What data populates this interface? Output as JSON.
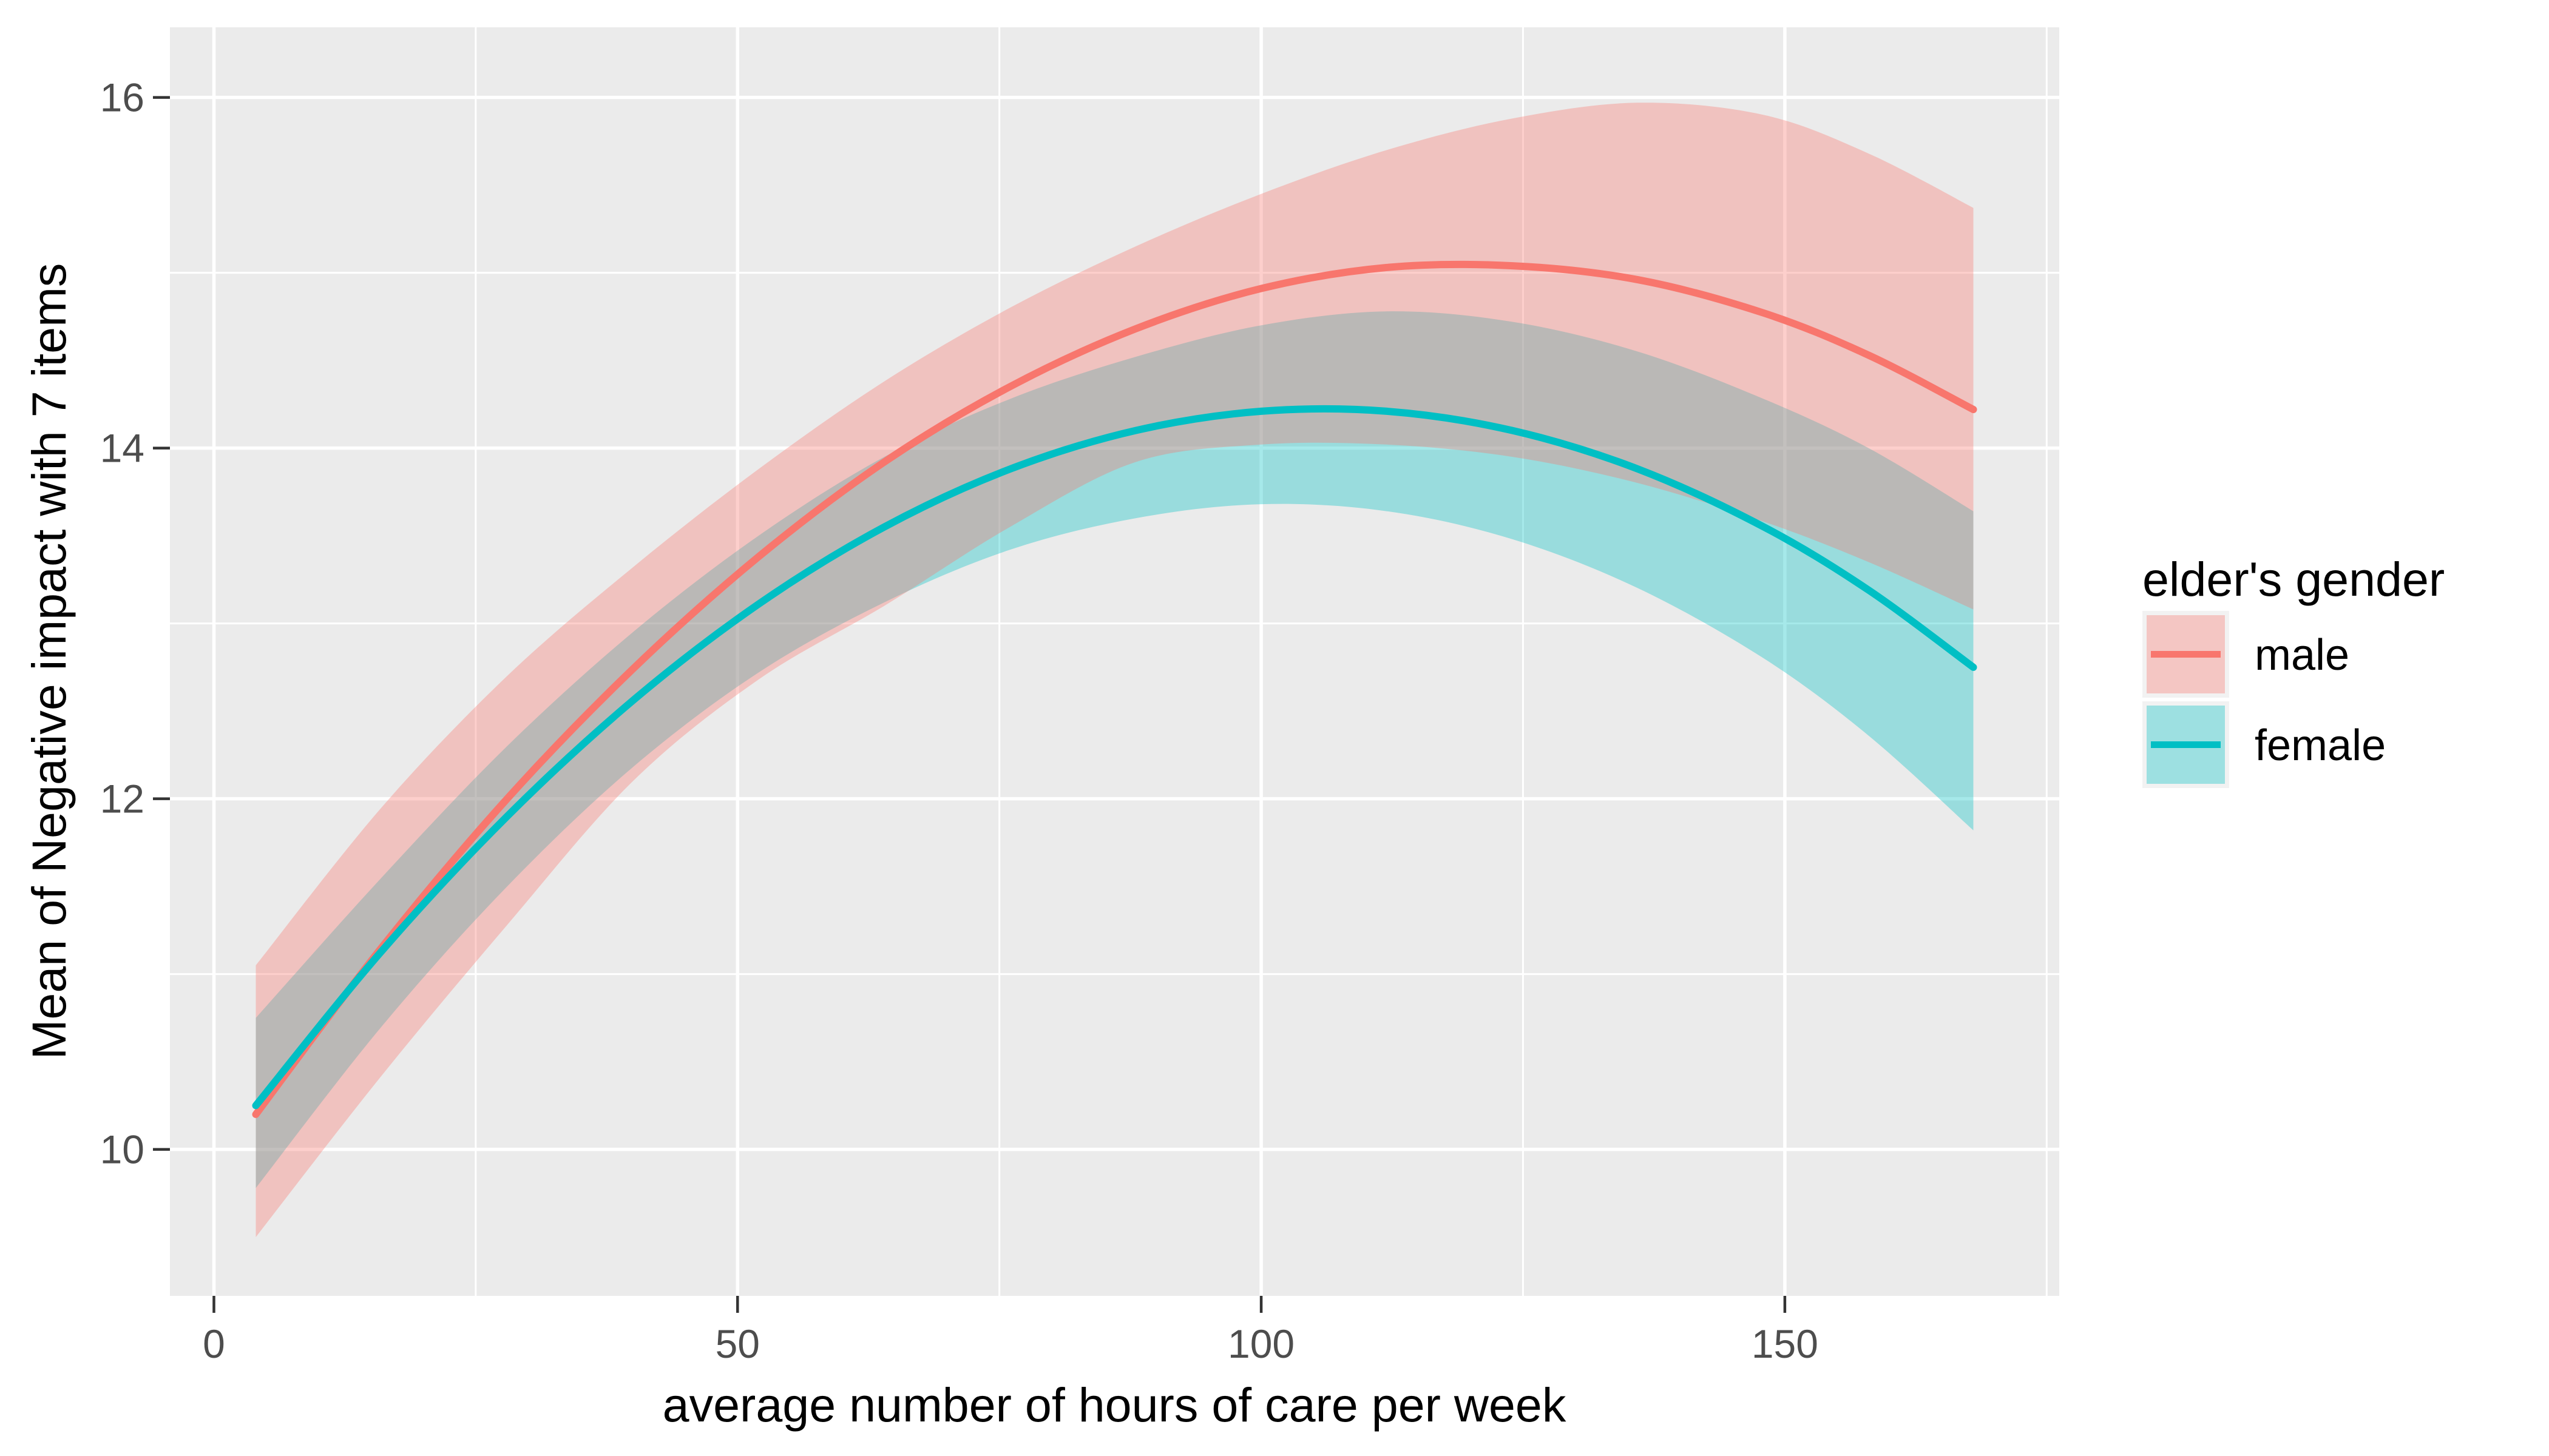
{
  "chart_data": {
    "type": "line",
    "title": "",
    "xlabel": "average number of hours of care per week",
    "ylabel": "Mean of Negative impact with 7 items",
    "xlim": [
      -4.2,
      176.2
    ],
    "ylim": [
      9.165,
      16.4
    ],
    "grid": true,
    "panel_bg": "#EBEBEB",
    "grid_color": "#FFFFFF",
    "tick_mark_color": "#333333",
    "tick_label_color": "#4D4D4D",
    "x_axis": {
      "major_ticks": [
        0,
        50,
        100,
        150
      ],
      "major_labels": [
        "0",
        "50",
        "100",
        "150"
      ],
      "minor_ticks": [
        25,
        75,
        125,
        175
      ]
    },
    "y_axis": {
      "major_ticks": [
        10,
        12,
        14,
        16
      ],
      "major_labels": [
        "10",
        "12",
        "14",
        "16"
      ],
      "minor_ticks": [
        11,
        13,
        15
      ]
    },
    "legend": {
      "title": "elder's gender",
      "position": "right",
      "key_bg": "#F2F2F2",
      "entries": [
        {
          "label": "male",
          "color": "#F8766D"
        },
        {
          "label": "female",
          "color": "#00BFC4"
        }
      ]
    },
    "ribbon_alpha": 0.35,
    "x": [
      4,
      16,
      28,
      40,
      52,
      64,
      76,
      88,
      100,
      112,
      124,
      136,
      148,
      158,
      168
    ],
    "series": [
      {
        "name": "female",
        "color": "#00BFC4",
        "line": [
          10.25,
          11.13,
          11.9,
          12.56,
          13.11,
          13.55,
          13.88,
          14.1,
          14.21,
          14.21,
          14.1,
          13.88,
          13.55,
          13.19,
          12.75
        ],
        "upper": [
          10.75,
          11.55,
          12.3,
          12.95,
          13.5,
          13.95,
          14.28,
          14.52,
          14.7,
          14.78,
          14.72,
          14.55,
          14.28,
          14.0,
          13.64
        ],
        "lower": [
          9.78,
          10.7,
          11.5,
          12.18,
          12.72,
          13.12,
          13.42,
          13.6,
          13.68,
          13.64,
          13.48,
          13.2,
          12.8,
          12.36,
          11.82
        ]
      },
      {
        "name": "male",
        "color": "#F8766D",
        "line": [
          10.2,
          11.15,
          12.0,
          12.74,
          13.38,
          13.92,
          14.35,
          14.68,
          14.91,
          15.03,
          15.04,
          14.96,
          14.77,
          14.53,
          14.22
        ],
        "upper": [
          11.05,
          11.95,
          12.7,
          13.32,
          13.88,
          14.38,
          14.8,
          15.15,
          15.45,
          15.7,
          15.88,
          15.97,
          15.9,
          15.68,
          15.37
        ],
        "lower": [
          9.5,
          10.42,
          11.28,
          12.1,
          12.68,
          13.1,
          13.55,
          13.92,
          14.02,
          14.02,
          13.95,
          13.8,
          13.58,
          13.35,
          13.08
        ]
      }
    ],
    "line_draw_order": [
      "male",
      "female"
    ],
    "ribbon_draw_order": [
      "female",
      "male"
    ]
  }
}
